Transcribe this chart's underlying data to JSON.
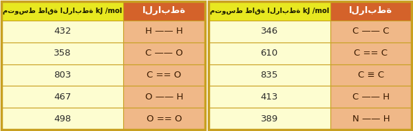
{
  "table1": {
    "header_right": "الرابطة",
    "header_left": "متوسط طاقة الرابطة kJ /mol",
    "rows": [
      [
        "H —— H",
        "432"
      ],
      [
        "C —— O",
        "358"
      ],
      [
        "C == O",
        "803"
      ],
      [
        "O —— H",
        "467"
      ],
      [
        "O == O",
        "498"
      ]
    ]
  },
  "table2": {
    "header_right": "الرابطة",
    "header_left": "متوسط طاقة الرابطة kJ /mol",
    "rows": [
      [
        "C —— C",
        "346"
      ],
      [
        "C == C",
        "610"
      ],
      [
        "C ≡ C",
        "835"
      ],
      [
        "C —— H",
        "413"
      ],
      [
        "N —— H",
        "389"
      ]
    ]
  },
  "header_bg_right": "#d4622a",
  "header_bg_left": "#e8e820",
  "header_text_right": "#ffffff",
  "header_text_left": "#1a1a00",
  "row_bg_value": "#fdfdd0",
  "row_bg_bond": "#f0b888",
  "border_color": "#c8a020",
  "outer_border_color": "#c8a020",
  "text_color_value": "#2a2a2a",
  "text_color_bond": "#3a1a00",
  "figsize": [
    6.0,
    1.91
  ],
  "dpi": 100
}
